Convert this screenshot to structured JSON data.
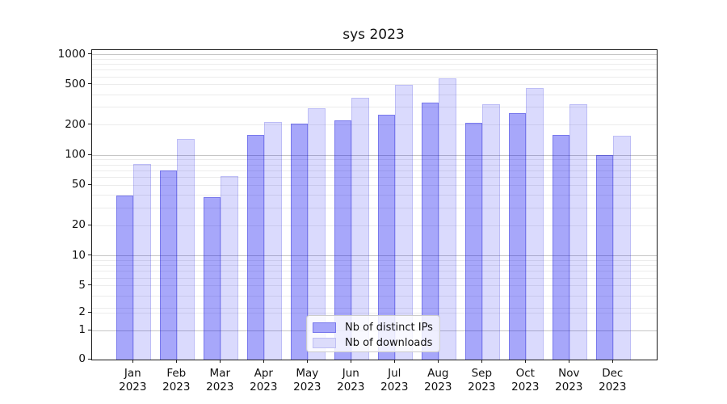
{
  "title": "sys 2023",
  "chart_data": {
    "type": "bar",
    "title": "sys 2023",
    "categories": [
      "Jan 2023",
      "Feb 2023",
      "Mar 2023",
      "Apr 2023",
      "May 2023",
      "Jun 2023",
      "Jul 2023",
      "Aug 2023",
      "Sep 2023",
      "Oct 2023",
      "Nov 2023",
      "Dec 2023"
    ],
    "series": [
      {
        "name": "Nb of distinct IPs",
        "color": "#a7a7fa",
        "fill": "rgba(0,0,240,0.345)",
        "edge": "rgba(0,0,200,0.28)",
        "values": [
          40,
          70,
          38,
          160,
          205,
          220,
          250,
          330,
          210,
          260,
          160,
          100
        ]
      },
      {
        "name": "Nb of downloads",
        "color": "#dcdcfb",
        "fill": "rgba(0,0,240,0.145)",
        "edge": "rgba(0,0,200,0.13)",
        "values": [
          82,
          145,
          62,
          215,
          295,
          370,
          500,
          575,
          320,
          465,
          320,
          155
        ]
      }
    ],
    "xlabel": "",
    "ylabel": "",
    "yscale": "symlog",
    "ylim": [
      0,
      1120
    ],
    "yticks": [
      0,
      1,
      2,
      5,
      10,
      20,
      50,
      100,
      200,
      500,
      1000
    ],
    "grid": true,
    "legend_position": "lower center",
    "axis_color": "#1a1a1a",
    "major_grid_color": "#c6c6c6",
    "minor_grid_color": "#ececec",
    "background_color": "#ffffff"
  }
}
